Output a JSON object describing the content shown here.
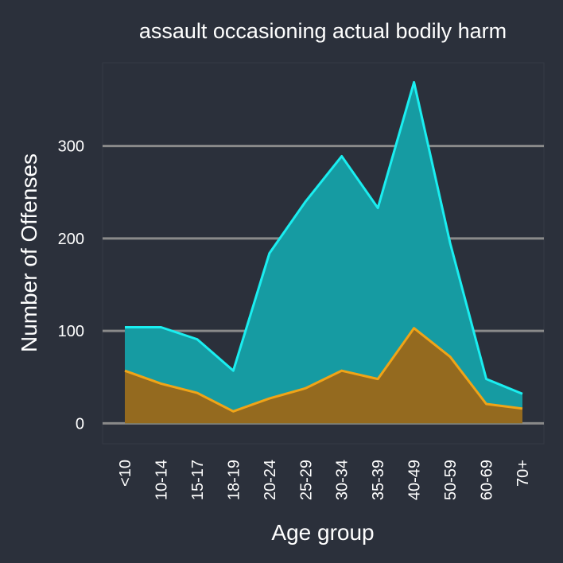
{
  "chart_data": {
    "type": "area",
    "title": "assault occasioning actual bodily harm",
    "xlabel": "Age group",
    "ylabel": "Number of Offenses",
    "categories": [
      "<10",
      "10-14",
      "15-17",
      "18-19",
      "20-24",
      "25-29",
      "30-34",
      "35-39",
      "40-49",
      "50-59",
      "60-69",
      "70+"
    ],
    "ylim": [
      -22,
      390
    ],
    "yticks": [
      0,
      100,
      200,
      300
    ],
    "grid": true,
    "legend": "none",
    "series": [
      {
        "color": "#1aeef0",
        "fill": "#169ba2",
        "values": [
          104,
          104,
          91,
          57,
          184,
          240,
          289,
          233,
          369,
          195,
          48,
          32
        ]
      },
      {
        "color": "#f0a417",
        "fill": "#946a1f",
        "values": [
          57,
          43,
          33,
          13,
          27,
          38,
          57,
          48,
          103,
          72,
          21,
          16
        ]
      }
    ]
  }
}
